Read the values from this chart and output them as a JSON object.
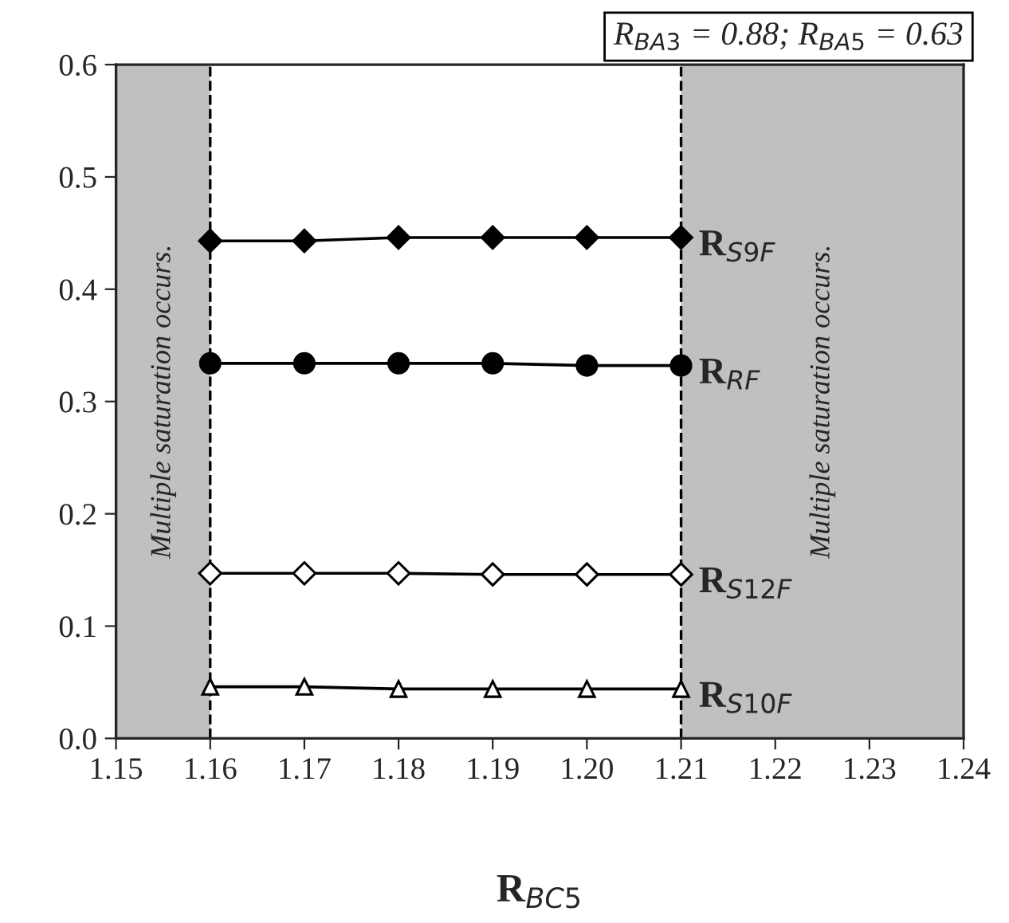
{
  "chart_data": {
    "type": "line",
    "title": "R$_{BA3}$ = 0.88; R$_{BA5}$ = 0.63",
    "xlabel": "R$_{BC5}$",
    "x": [
      1.16,
      1.17,
      1.18,
      1.19,
      1.2,
      1.21
    ],
    "series": [
      {
        "name": "R$_{S9F}$",
        "color": "#000000",
        "marker": "diamond",
        "values": [
          0.443,
          0.443,
          0.446,
          0.446,
          0.446,
          0.446
        ]
      },
      {
        "name": "R$_{RF}$",
        "color": "#000000",
        "marker": "circle",
        "values": [
          0.334,
          0.334,
          0.334,
          0.334,
          0.332,
          0.332
        ]
      },
      {
        "name": "R$_{S12F}$",
        "color": "#ffffff",
        "marker": "diamond",
        "values": [
          0.147,
          0.147,
          0.147,
          0.146,
          0.146,
          0.146
        ]
      },
      {
        "name": "R$_{S10F}$",
        "color": "#ffffff",
        "marker": "triangle",
        "values": [
          0.046,
          0.046,
          0.044,
          0.044,
          0.044,
          0.044
        ]
      }
    ],
    "xlim": [
      1.15,
      1.24
    ],
    "xticks": [
      {
        "value": 1.15,
        "label": "1.15"
      },
      {
        "value": 1.16,
        "label": "1.16"
      },
      {
        "value": 1.17,
        "label": "1.17"
      },
      {
        "value": 1.18,
        "label": "1.18"
      },
      {
        "value": 1.19,
        "label": "1.19"
      },
      {
        "value": 1.2,
        "label": "1.20"
      },
      {
        "value": 1.21,
        "label": "1.21"
      },
      {
        "value": 1.22,
        "label": "1.22"
      },
      {
        "value": 1.23,
        "label": "1.23"
      },
      {
        "value": 1.24,
        "label": "1.24"
      }
    ],
    "ylim": [
      0,
      0.6
    ],
    "yticks": [
      {
        "value": 0,
        "label": "0.0"
      },
      0.1,
      0.2,
      0.3,
      0.4,
      0.5,
      0.6
    ],
    "bands": [
      {
        "axis": "x",
        "from": 1.15,
        "to": 1.16,
        "label": "Multiple saturation occurs.",
        "color": "#c0c0c0"
      },
      {
        "axis": "x",
        "from": 1.21,
        "to": 1.24,
        "label": "Multiple saturation occurs.",
        "color": "#c0c0c0"
      }
    ],
    "ref_lines": [
      {
        "axis": "x",
        "value": 1.16,
        "line_style": "dashed",
        "color": "#000000"
      },
      {
        "axis": "x",
        "value": 1.21,
        "line_style": "dashed",
        "color": "#000000"
      }
    ],
    "grid": false,
    "legend": false
  }
}
